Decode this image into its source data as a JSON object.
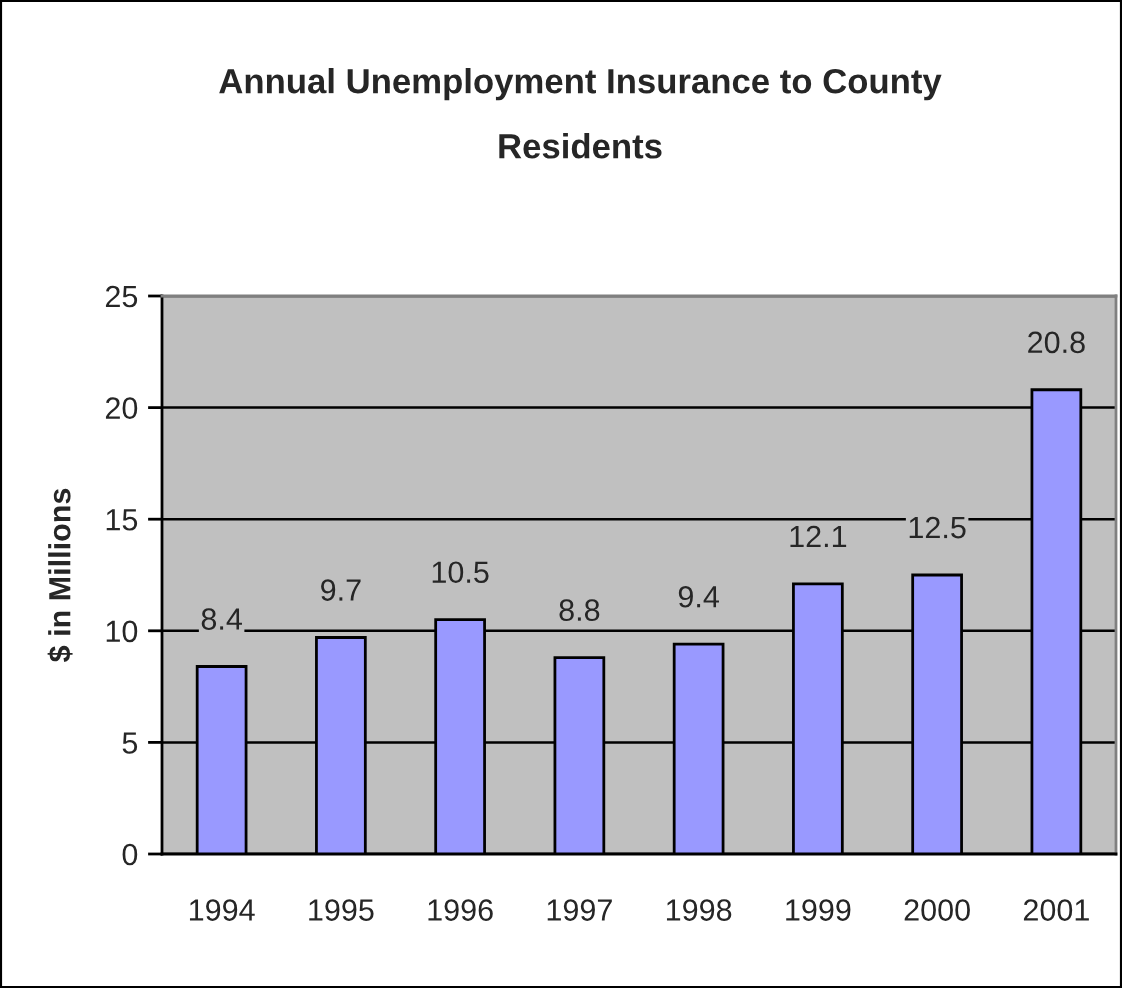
{
  "chart_data": {
    "type": "bar",
    "title": "Annual Unemployment Insurance to County Residents",
    "ylabel": "$ in Millions",
    "categories": [
      "1994",
      "1995",
      "1996",
      "1997",
      "1998",
      "1999",
      "2000",
      "2001"
    ],
    "values": [
      8.4,
      9.7,
      10.5,
      8.8,
      9.4,
      12.1,
      12.5,
      20.8
    ],
    "color": "#9999ff",
    "ylim": [
      0,
      25
    ],
    "yticks": [
      0,
      5,
      10,
      15,
      20,
      25
    ],
    "grid": "y",
    "data_labels": true,
    "legend": false
  }
}
